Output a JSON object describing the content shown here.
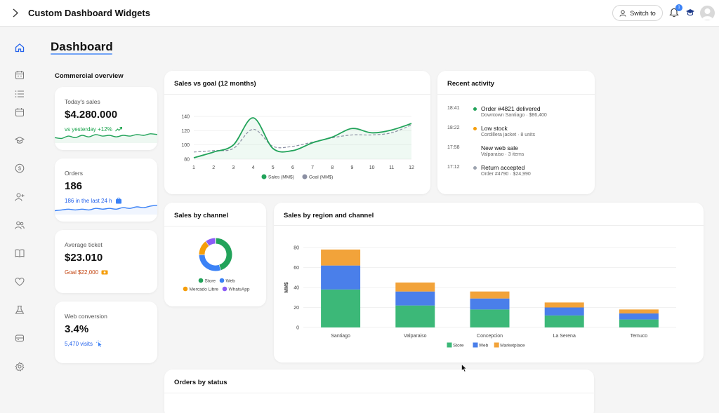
{
  "app": {
    "title": "Custom Dashboard Widgets",
    "switch_label": "Switch to",
    "notification_count": "1",
    "icons": [
      "sidebar-toggle-icon",
      "user-icon",
      "bell-icon",
      "graduation-cap-icon",
      "avatar"
    ]
  },
  "sidebar": {
    "items": [
      {
        "name": "home",
        "icon": "home-icon",
        "active": true
      },
      {
        "name": "calendar",
        "icon": "calendar-icon"
      },
      {
        "name": "list",
        "icon": "list-icon"
      },
      {
        "name": "events",
        "icon": "calendar-alt-icon"
      },
      {
        "name": "courses",
        "icon": "graduation-cap-icon"
      },
      {
        "name": "payments",
        "icon": "dollar-icon"
      },
      {
        "name": "add-user",
        "icon": "user-plus-icon"
      },
      {
        "name": "users",
        "icon": "users-icon"
      },
      {
        "name": "book",
        "icon": "book-icon"
      },
      {
        "name": "favorites",
        "icon": "heart-icon"
      },
      {
        "name": "lab",
        "icon": "flask-icon"
      },
      {
        "name": "storage",
        "icon": "database-icon"
      },
      {
        "name": "settings",
        "icon": "gear-icon"
      }
    ]
  },
  "page": {
    "title": "Dashboard",
    "section": "Commercial overview"
  },
  "kpis": [
    {
      "label": "Today's sales",
      "value": "$4.280.000",
      "sub": "vs yesterday +12%",
      "sub_color": "#16a34a",
      "icon": "trend-up-icon",
      "spark_color": "#22a35a",
      "spark_trend": [
        0.35,
        0.3,
        0.45,
        0.35,
        0.5,
        0.4,
        0.55,
        0.45,
        0.5,
        0.4,
        0.5,
        0.45,
        0.55,
        0.5,
        0.6,
        0.55
      ]
    },
    {
      "label": "Orders",
      "value": "186",
      "sub": "186 in the last 24 h",
      "sub_color": "#2563eb",
      "icon": "shopping-bag-icon",
      "spark_color": "#3b82f6",
      "spark_trend": [
        0.25,
        0.3,
        0.35,
        0.3,
        0.35,
        0.3,
        0.4,
        0.35,
        0.4,
        0.35,
        0.45,
        0.4,
        0.5,
        0.45,
        0.55,
        0.6
      ]
    },
    {
      "label": "Average ticket",
      "value": "$23.010",
      "sub": "Goal $22,000",
      "sub_color": "#c2410c",
      "icon": "money-icon"
    },
    {
      "label": "Web conversion",
      "value": "3.4%",
      "sub": "5,470 visits",
      "sub_color": "#2563eb",
      "icon": "click-icon"
    }
  ],
  "sales_goal": {
    "title": "Sales vs goal (12 months)"
  },
  "recent_activity": {
    "title": "Recent activity",
    "items": [
      {
        "time": "18:41",
        "title": "Order #4821 delivered",
        "detail": "Downtown Santiago · $86,400",
        "dot": "#22a35a"
      },
      {
        "time": "18:22",
        "title": "Low stock",
        "detail": "Cordillera jacket · 8 units",
        "dot": "#f59e0b"
      },
      {
        "time": "17:58",
        "title": "New web sale",
        "detail": "Valparaiso · 3 items",
        "dot": ""
      },
      {
        "time": "17:12",
        "title": "Return accepted",
        "detail": "Order #4790 · $24,990",
        "dot": "#9ca3af"
      }
    ]
  },
  "orders_status": {
    "title": "Orders by status"
  },
  "chart_data": [
    {
      "type": "line",
      "title": "Sales vs goal (12 months)",
      "x": [
        1,
        2,
        3,
        4,
        5,
        6,
        7,
        8,
        9,
        10,
        11,
        12
      ],
      "ylim": [
        80,
        140
      ],
      "yticks": [
        80,
        100,
        120,
        140
      ],
      "series": [
        {
          "name": "Sales (MM$)",
          "color": "#22a35a",
          "values": [
            82,
            90,
            100,
            138,
            95,
            92,
            103,
            111,
            123,
            117,
            121,
            130
          ]
        },
        {
          "name": "Goal (MM$)",
          "color": "#8b8fa3",
          "values": [
            90,
            92,
            95,
            122,
            98,
            98,
            104,
            110,
            114,
            114,
            117,
            128
          ]
        }
      ],
      "legend": "bottom"
    },
    {
      "type": "pie",
      "title": "Sales by channel",
      "categories": [
        "Store",
        "Web",
        "Mercado Libre",
        "WhatsApp"
      ],
      "values": [
        45,
        30,
        15,
        10
      ],
      "colors": [
        "#22a35a",
        "#3b82f6",
        "#f59e0b",
        "#8b5cf6"
      ],
      "legend": "bottom"
    },
    {
      "type": "bar",
      "stacked": true,
      "title": "Sales by region and channel",
      "ylabel": "MM$",
      "categories": [
        "Santiago",
        "Valparaiso",
        "Concepcion",
        "La Serena",
        "Temuco"
      ],
      "ylim": [
        0,
        80
      ],
      "yticks": [
        0,
        20,
        40,
        60,
        80
      ],
      "series": [
        {
          "name": "Store",
          "color": "#3cb878",
          "values": [
            38,
            22,
            18,
            12,
            8
          ]
        },
        {
          "name": "Web",
          "color": "#4a7fea",
          "values": [
            24,
            14,
            11,
            8,
            6
          ]
        },
        {
          "name": "Marketplace",
          "color": "#f2a33a",
          "values": [
            16,
            9,
            7,
            5,
            4
          ]
        }
      ],
      "legend": "bottom"
    }
  ]
}
